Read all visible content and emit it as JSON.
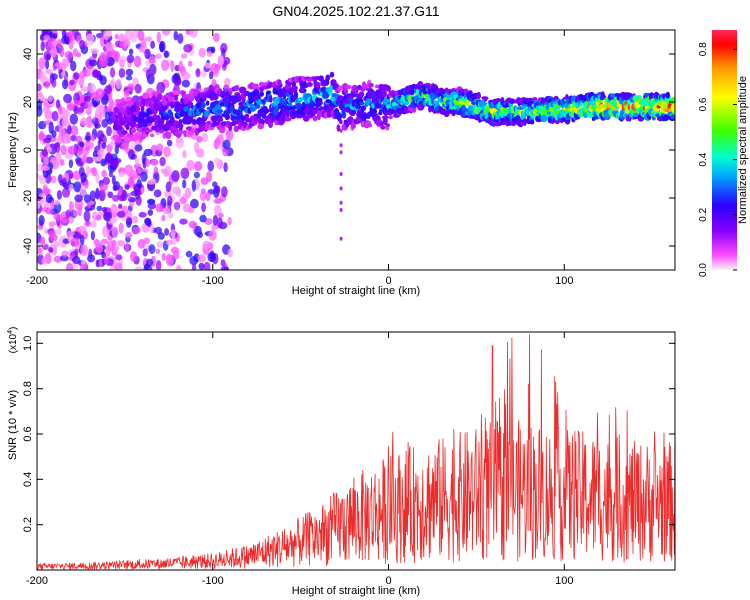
{
  "title": "GN04.2025.102.21.37.G11",
  "colors": {
    "snr_line": "#ee2a2a",
    "colormap": [
      "#f4f4f4",
      "#ff4fff",
      "#8a00ff",
      "#2a00ff",
      "#00a6ff",
      "#00ffd0",
      "#3dff00",
      "#ffff00",
      "#ff9a00",
      "#ff0000",
      "#ff2a5a"
    ]
  },
  "chart_data": [
    {
      "type": "heatmap",
      "title": "GN04.2025.102.21.37.G11",
      "xlabel": "Height of straight line (km)",
      "ylabel": "Frequency (Hz)",
      "xlim": [
        -200,
        163
      ],
      "ylim": [
        -50,
        50
      ],
      "xticks": [
        -200,
        -100,
        0,
        100
      ],
      "yticks": [
        -40,
        -20,
        0,
        20,
        40
      ],
      "colorbar": {
        "label": "Normalized spectral amplitude",
        "range": [
          0,
          0.87
        ],
        "ticks": [
          0.0,
          0.2,
          0.4,
          0.6,
          0.8
        ]
      },
      "ridge": {
        "description_points_x": [
          -150,
          -140,
          -120,
          -100,
          -80,
          -60,
          -40,
          -32,
          -28,
          -20,
          -10,
          0,
          10,
          20,
          30,
          40,
          60,
          80,
          100,
          120,
          140,
          160
        ],
        "frequency_y": [
          12,
          14,
          15,
          17,
          18,
          20,
          22,
          24,
          17,
          18,
          19,
          18,
          21,
          23,
          20,
          20,
          16,
          16,
          17,
          18,
          18,
          18
        ],
        "amplitude": [
          0.2,
          0.25,
          0.3,
          0.35,
          0.35,
          0.4,
          0.4,
          0.45,
          0.35,
          0.35,
          0.35,
          0.4,
          0.5,
          0.55,
          0.55,
          0.6,
          0.65,
          0.6,
          0.65,
          0.8,
          0.85,
          0.85
        ]
      },
      "grid": false
    },
    {
      "type": "line",
      "xlabel": "Height of straight line (km)",
      "ylabel": "SNR (10 * v/v)",
      "scale_label": "(x10",
      "scale_exp": "4",
      "xlim": [
        -200,
        163
      ],
      "ylim": [
        0,
        1.05
      ],
      "xticks": [
        -200,
        -100,
        0,
        100
      ],
      "yticks": [
        0.2,
        0.4,
        0.6,
        0.8,
        1.0
      ],
      "series": [
        {
          "envelope_x": [
            -200,
            -160,
            -140,
            -120,
            -100,
            -80,
            -60,
            -40,
            -20,
            0,
            20,
            40,
            60,
            80,
            100,
            120,
            140,
            163
          ],
          "envelope_max": [
            0.03,
            0.04,
            0.05,
            0.06,
            0.08,
            0.12,
            0.2,
            0.3,
            0.45,
            0.6,
            0.7,
            0.8,
            1.0,
            1.05,
            0.85,
            0.8,
            0.75,
            0.6
          ],
          "envelope_mean": [
            0.015,
            0.02,
            0.025,
            0.03,
            0.04,
            0.06,
            0.1,
            0.15,
            0.22,
            0.27,
            0.3,
            0.32,
            0.35,
            0.35,
            0.33,
            0.32,
            0.3,
            0.3
          ]
        }
      ],
      "grid": false
    }
  ]
}
